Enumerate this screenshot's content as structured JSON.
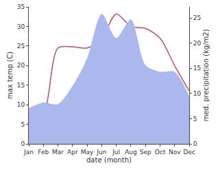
{
  "chart_data": {
    "type": "line",
    "categories": [
      "Jan",
      "Feb",
      "Mar",
      "Apr",
      "May",
      "Jun",
      "Jul",
      "Aug",
      "Sep",
      "Oct",
      "Nov",
      "Dec"
    ],
    "x_label": "date (month)",
    "y_label": "max temp (C)",
    "y2_label": "med. precipitation (kg/m2)",
    "ylim": [
      0,
      35
    ],
    "yticks": [
      0,
      5,
      10,
      15,
      20,
      25,
      30,
      35
    ],
    "y2lim": [
      0,
      27.2
    ],
    "y2ticks": [
      0,
      5,
      10,
      15,
      20,
      25
    ],
    "grid": false,
    "series": [
      {
        "name": "med. precipitation",
        "type": "area",
        "axis": "y2",
        "color": "#aab8ee",
        "values": [
          7.1,
          8.2,
          7.9,
          11.5,
          17,
          25.8,
          21,
          24.7,
          15.6,
          14.3,
          14.3,
          9.5
        ]
      },
      {
        "name": "max temp",
        "type": "line",
        "axis": "y",
        "color": "#c0504d",
        "values": [
          4,
          7,
          24.5,
          24.8,
          24.5,
          27,
          33.2,
          30,
          29.5,
          27,
          20,
          13.5
        ]
      }
    ]
  }
}
